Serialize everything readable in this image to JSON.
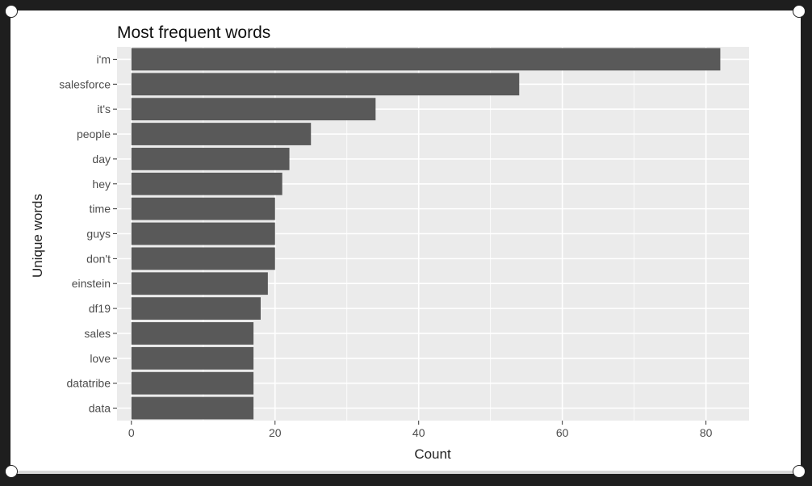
{
  "chart_data": {
    "type": "bar",
    "orientation": "horizontal",
    "title": "Most frequent words",
    "xlabel": "Count",
    "ylabel": "Unique words",
    "categories": [
      "i'm",
      "salesforce",
      "it's",
      "people",
      "day",
      "hey",
      "time",
      "guys",
      "don't",
      "einstein",
      "df19",
      "sales",
      "love",
      "datatribe",
      "data"
    ],
    "values": [
      82,
      54,
      34,
      25,
      22,
      21,
      20,
      20,
      20,
      19,
      18,
      17,
      17,
      17,
      17
    ],
    "xlim": [
      -2,
      86
    ],
    "xticks": [
      0,
      20,
      40,
      60,
      80
    ],
    "grid": true,
    "colors": {
      "panel": "#ebebeb",
      "bar": "#595959",
      "grid": "#ffffff"
    }
  }
}
